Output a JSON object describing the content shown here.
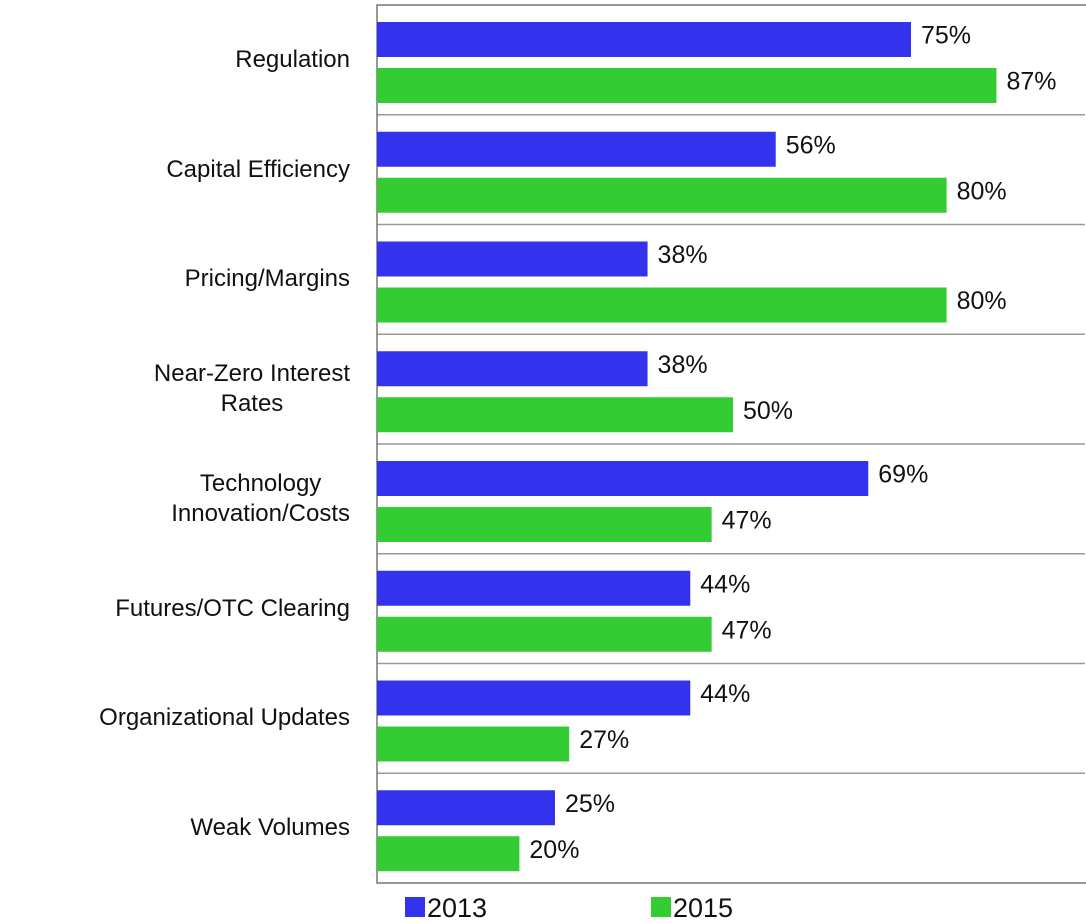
{
  "chart_data": {
    "type": "bar",
    "orientation": "horizontal",
    "categories": [
      "Regulation",
      "Capital Efficiency",
      "Pricing/Margins",
      "Near-Zero Interest\nRates",
      "Technology\nInnovation/Costs",
      "Futures/OTC Clearing",
      "Organizational Updates",
      "Weak Volumes"
    ],
    "series": [
      {
        "name": "2013",
        "color": "#3333ee",
        "values": [
          75,
          56,
          38,
          38,
          69,
          44,
          44,
          25
        ],
        "value_labels": [
          "75%",
          "56%",
          "38%",
          "38%",
          "69%",
          "44%",
          "44%",
          "25%"
        ]
      },
      {
        "name": "2015",
        "color": "#33cc33",
        "values": [
          87,
          80,
          80,
          50,
          47,
          47,
          27,
          20
        ],
        "value_labels": [
          "87%",
          "80%",
          "80%",
          "50%",
          "47%",
          "47%",
          "27%",
          "20%"
        ]
      }
    ],
    "xlim": [
      0,
      100
    ],
    "legend": "bottom"
  }
}
